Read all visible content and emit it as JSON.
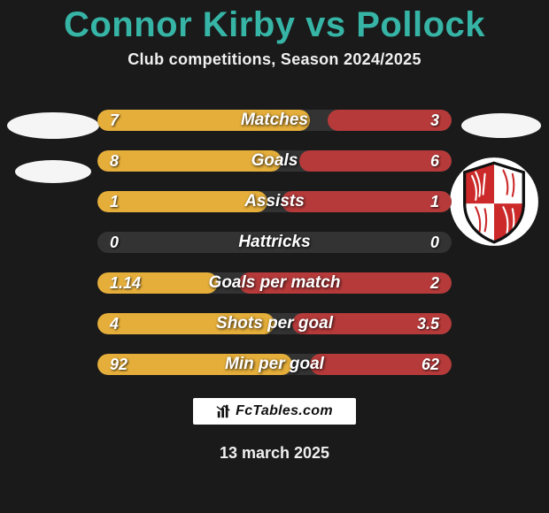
{
  "title": "Connor Kirby vs Pollock",
  "title_color": "#36b5a6",
  "subtitle": "Club competitions, Season 2024/2025",
  "background_color": "#1a1a1a",
  "stats": {
    "track_color": "#333333",
    "left_color": "#e5ae3a",
    "right_color": "#b63a3a",
    "label_color": "#ffffff",
    "rows": [
      {
        "label": "Matches",
        "left": "7",
        "right": "3",
        "left_pct": 60,
        "right_pct": 35
      },
      {
        "label": "Goals",
        "left": "8",
        "right": "6",
        "left_pct": 52,
        "right_pct": 43
      },
      {
        "label": "Assists",
        "left": "1",
        "right": "1",
        "left_pct": 48,
        "right_pct": 48
      },
      {
        "label": "Hattricks",
        "left": "0",
        "right": "0",
        "left_pct": 0,
        "right_pct": 0
      },
      {
        "label": "Goals per match",
        "left": "1.14",
        "right": "2",
        "left_pct": 34,
        "right_pct": 60
      },
      {
        "label": "Shots per goal",
        "left": "4",
        "right": "3.5",
        "left_pct": 50,
        "right_pct": 45
      },
      {
        "label": "Min per goal",
        "left": "92",
        "right": "62",
        "left_pct": 55,
        "right_pct": 40
      }
    ]
  },
  "brand": {
    "text": "FcTables.com",
    "background": "#ffffff",
    "text_color": "#111111"
  },
  "date": "13 march 2025",
  "crest": {
    "shield_bg": "#ffffff",
    "accent": "#cc2a2a",
    "border": "#111111"
  }
}
